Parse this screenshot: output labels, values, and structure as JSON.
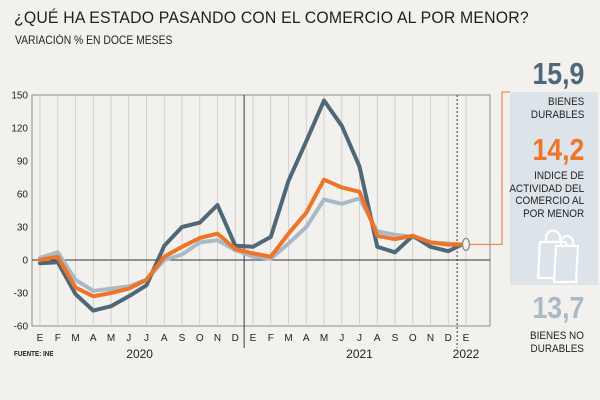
{
  "header": {
    "title": "¿QUÉ HA ESTADO PASANDO CON EL COMERCIO AL POR MENOR?",
    "subtitle": "VARIACIÓN % EN DOCE MESES"
  },
  "source": "FUENTE: INE",
  "side_panel": {
    "durables_value": "15,9",
    "durables_label": [
      "BIENES",
      "DURABLES"
    ],
    "index_value": "14,2",
    "index_label": [
      "INDICE DE",
      "ACTIVIDAD DEL",
      "COMERCIO AL",
      "POR MENOR"
    ],
    "nondurables_value": "13,7",
    "nondurables_label": [
      "BIENES NO",
      "DURABLES"
    ],
    "bag_icon": "shopping-bag-icon"
  },
  "colors": {
    "durables": "#4e6878",
    "index": "#ee7427",
    "nondurables": "#a9bac6",
    "background": "#f3f1ee",
    "panel": "#dce4ea"
  },
  "chart_data": {
    "type": "line",
    "x": [
      "E",
      "F",
      "M",
      "A",
      "M",
      "J",
      "J",
      "A",
      "S",
      "O",
      "N",
      "D",
      "E",
      "F",
      "M",
      "A",
      "M",
      "J",
      "J",
      "A",
      "S",
      "O",
      "N",
      "D",
      "E"
    ],
    "year_labels": [
      "2020",
      "2021",
      "2022"
    ],
    "ylim": [
      -60,
      150
    ],
    "yticks": [
      150,
      120,
      90,
      60,
      30,
      0,
      -30,
      -60
    ],
    "grid": "vertical",
    "series": [
      {
        "name": "BIENES DURABLES",
        "color": "#4e6878",
        "values": [
          -3,
          -2,
          -31,
          -46,
          -42,
          -33,
          -23,
          13,
          30,
          34,
          50,
          13,
          12,
          21,
          72,
          108,
          145,
          122,
          85,
          12,
          7,
          22,
          12,
          8,
          15.9
        ]
      },
      {
        "name": "INDICE DE ACTIVIDAD DEL COMERCIO AL POR MENOR",
        "color": "#ee7427",
        "values": [
          0,
          3,
          -25,
          -33,
          -30,
          -26,
          -18,
          3,
          12,
          20,
          24,
          10,
          6,
          3,
          24,
          43,
          73,
          66,
          62,
          22,
          19,
          22,
          16,
          14,
          14.2
        ]
      },
      {
        "name": "BIENES NO DURABLES",
        "color": "#a9bac6",
        "values": [
          2,
          7,
          -18,
          -28,
          -26,
          -24,
          -18,
          0,
          5,
          16,
          18,
          9,
          3,
          1,
          15,
          30,
          55,
          51,
          56,
          26,
          23,
          21,
          16,
          15,
          13.7
        ]
      }
    ]
  }
}
